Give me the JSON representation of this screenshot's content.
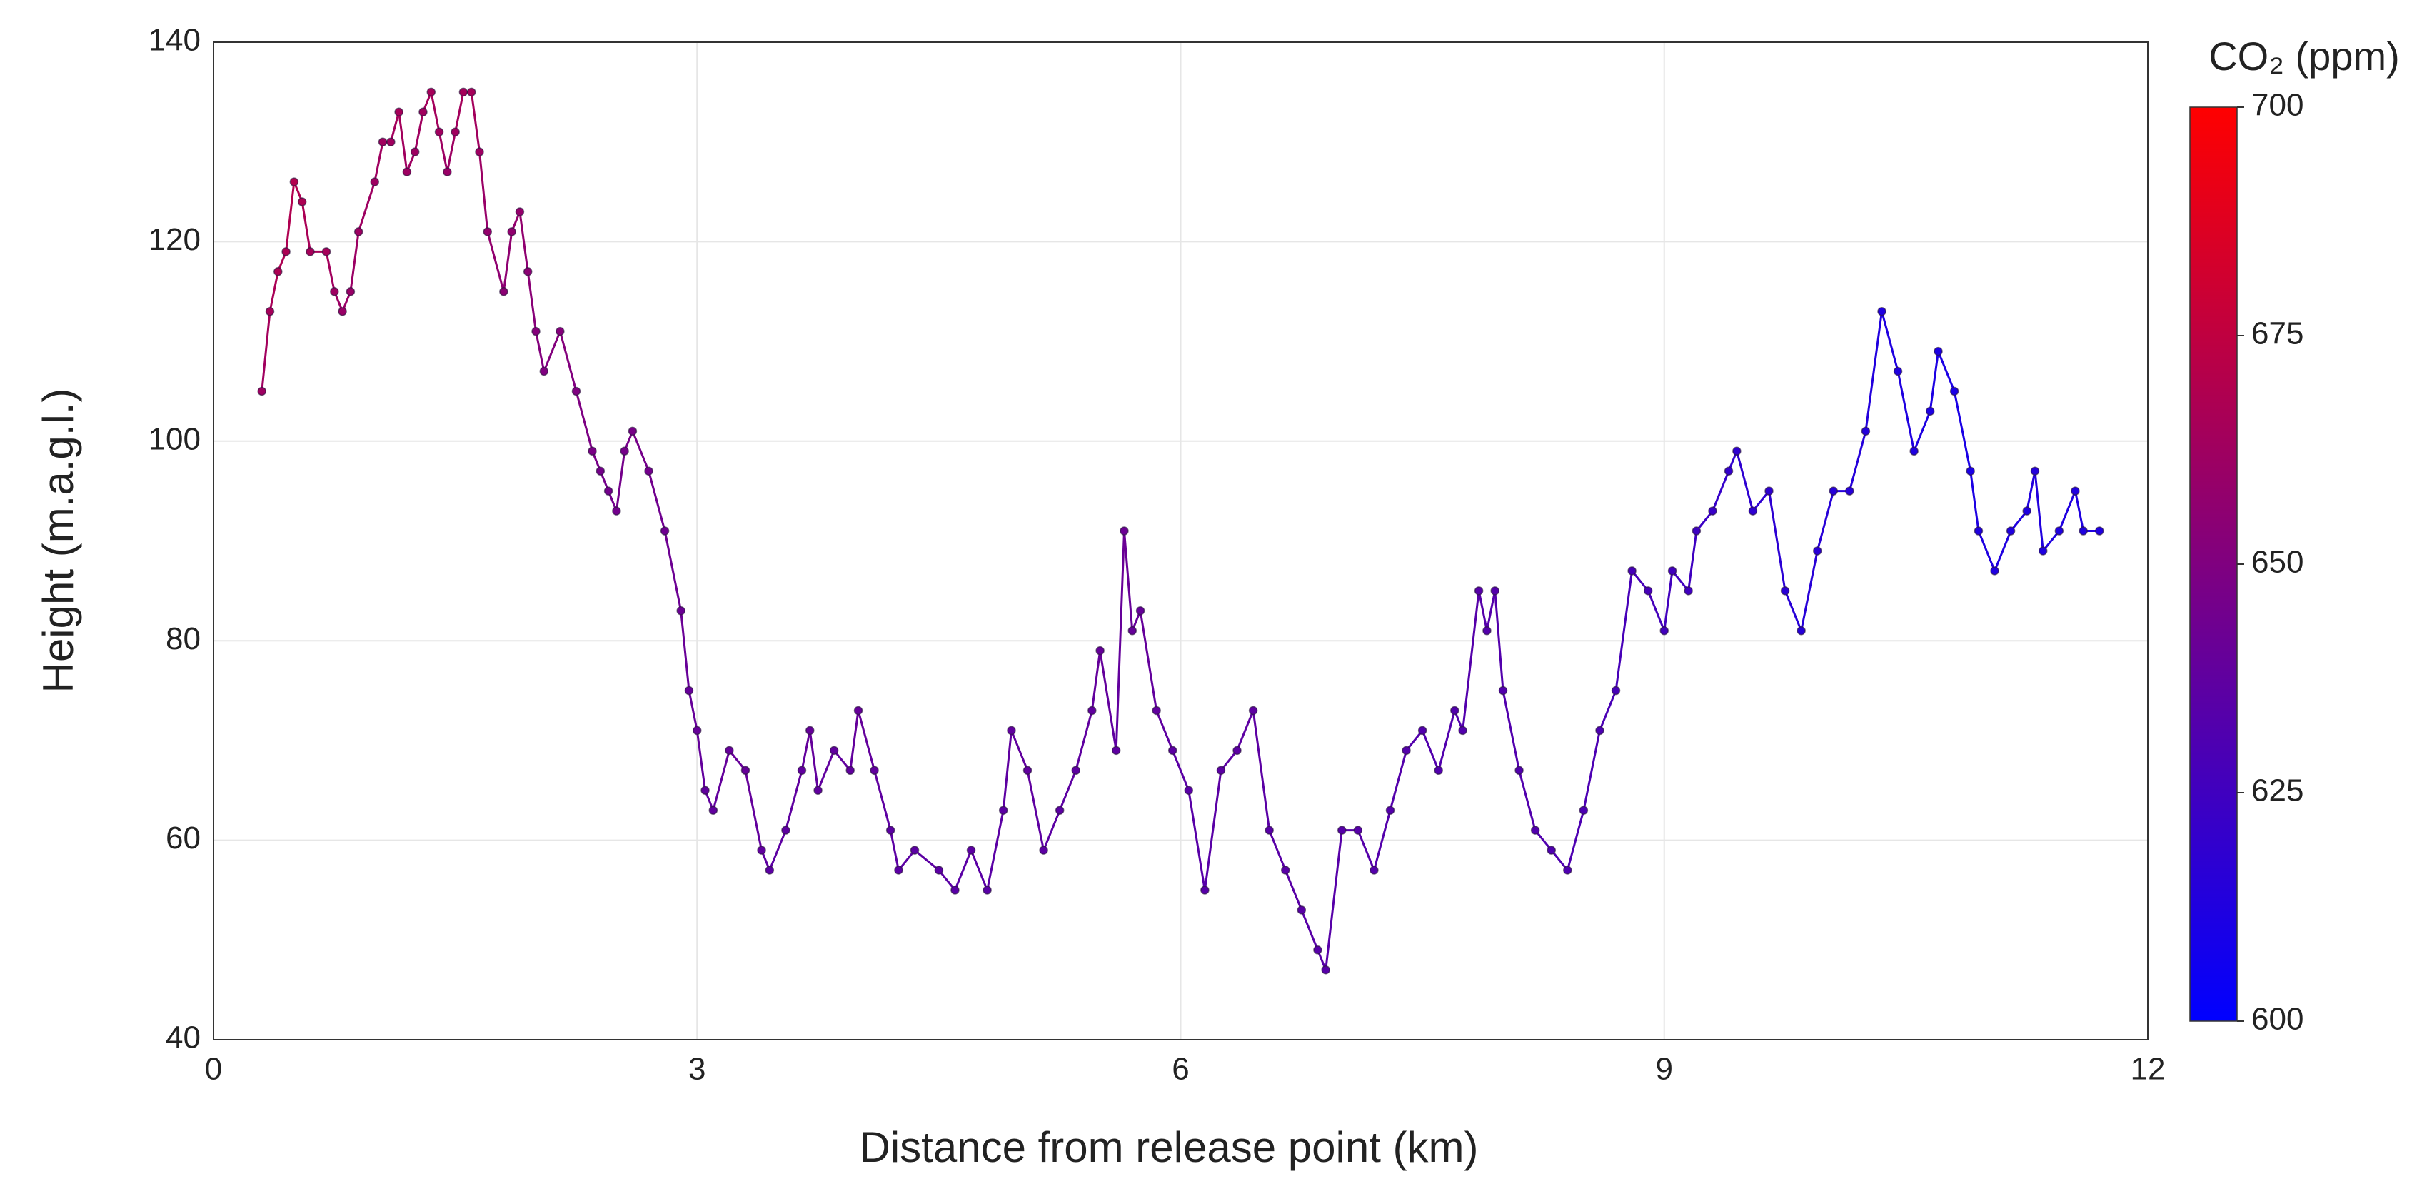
{
  "chart_data": {
    "type": "scatter",
    "x_label": "Distance from release point (km)",
    "y_label": "Height (m.a.g.l.)",
    "x": [
      0.3,
      0.35,
      0.4,
      0.45,
      0.5,
      0.55,
      0.6,
      0.7,
      0.75,
      0.8,
      0.85,
      0.9,
      1.0,
      1.05,
      1.1,
      1.15,
      1.2,
      1.25,
      1.3,
      1.35,
      1.4,
      1.45,
      1.5,
      1.55,
      1.6,
      1.65,
      1.7,
      1.8,
      1.85,
      1.9,
      1.95,
      2.0,
      2.05,
      2.15,
      2.25,
      2.35,
      2.4,
      2.45,
      2.5,
      2.55,
      2.6,
      2.7,
      2.8,
      2.9,
      2.95,
      3.0,
      3.05,
      3.1,
      3.2,
      3.3,
      3.4,
      3.45,
      3.55,
      3.65,
      3.7,
      3.75,
      3.85,
      3.95,
      4.0,
      4.1,
      4.2,
      4.25,
      4.35,
      4.5,
      4.6,
      4.7,
      4.8,
      4.9,
      4.95,
      5.05,
      5.15,
      5.25,
      5.35,
      5.45,
      5.5,
      5.6,
      5.65,
      5.7,
      5.75,
      5.85,
      5.95,
      6.05,
      6.15,
      6.25,
      6.35,
      6.45,
      6.55,
      6.65,
      6.75,
      6.85,
      6.9,
      7.0,
      7.1,
      7.2,
      7.3,
      7.4,
      7.5,
      7.6,
      7.7,
      7.75,
      7.85,
      7.9,
      7.95,
      8.0,
      8.1,
      8.2,
      8.3,
      8.4,
      8.5,
      8.6,
      8.7,
      8.8,
      8.9,
      9.0,
      9.05,
      9.15,
      9.2,
      9.3,
      9.4,
      9.45,
      9.55,
      9.65,
      9.75,
      9.85,
      9.95,
      10.05,
      10.15,
      10.25,
      10.35,
      10.45,
      10.55,
      10.65,
      10.7,
      10.8,
      10.9,
      10.95,
      11.05,
      11.15,
      11.25,
      11.3,
      11.35,
      11.45,
      11.55,
      11.6,
      11.7
    ],
    "values": [
      105,
      113,
      117,
      119,
      126,
      124,
      119,
      119,
      115,
      113,
      115,
      121,
      126,
      130,
      130,
      133,
      127,
      129,
      133,
      135,
      131,
      127,
      131,
      135,
      135,
      129,
      121,
      115,
      121,
      123,
      117,
      111,
      107,
      111,
      105,
      99,
      97,
      95,
      93,
      99,
      101,
      97,
      91,
      83,
      75,
      71,
      65,
      63,
      69,
      67,
      59,
      57,
      61,
      67,
      71,
      65,
      69,
      67,
      73,
      67,
      61,
      57,
      59,
      57,
      55,
      59,
      55,
      63,
      71,
      67,
      59,
      63,
      67,
      73,
      79,
      69,
      91,
      81,
      83,
      73,
      69,
      65,
      55,
      67,
      69,
      73,
      61,
      57,
      53,
      49,
      47,
      61,
      61,
      57,
      63,
      69,
      71,
      67,
      73,
      71,
      85,
      81,
      85,
      75,
      67,
      61,
      59,
      57,
      63,
      71,
      75,
      87,
      85,
      81,
      87,
      85,
      91,
      93,
      97,
      99,
      93,
      95,
      85,
      81,
      89,
      95,
      95,
      101,
      113,
      107,
      99,
      103,
      109,
      105,
      97,
      91,
      87,
      91,
      93,
      97,
      89,
      91,
      95,
      91,
      91
    ],
    "co2": [
      662,
      665,
      668,
      668,
      670,
      668,
      665,
      665,
      662,
      660,
      660,
      662,
      662,
      663,
      663,
      665,
      662,
      662,
      663,
      665,
      663,
      660,
      663,
      665,
      665,
      662,
      658,
      655,
      657,
      658,
      655,
      652,
      650,
      652,
      650,
      648,
      646,
      645,
      645,
      646,
      647,
      645,
      643,
      642,
      640,
      640,
      638,
      638,
      640,
      640,
      638,
      636,
      637,
      638,
      640,
      638,
      638,
      638,
      640,
      638,
      636,
      636,
      636,
      636,
      635,
      636,
      635,
      636,
      638,
      638,
      636,
      636,
      637,
      638,
      640,
      637,
      642,
      640,
      640,
      638,
      636,
      635,
      634,
      636,
      636,
      637,
      635,
      635,
      635,
      634,
      634,
      634,
      634,
      633,
      633,
      633,
      632,
      632,
      632,
      632,
      634,
      633,
      633,
      632,
      632,
      632,
      631,
      631,
      630,
      630,
      628,
      628,
      628,
      626,
      626,
      625,
      624,
      622,
      620,
      618,
      618,
      618,
      616,
      615,
      616,
      615,
      615,
      614,
      612,
      612,
      612,
      611,
      611,
      610,
      610,
      612,
      612,
      612,
      612,
      614,
      612,
      612,
      612,
      612,
      612
    ],
    "colorbar": {
      "title": "CO₂ (ppm)",
      "lim": [
        600,
        700
      ],
      "ticks": [
        600,
        625,
        650,
        675,
        700
      ],
      "colors": [
        "#0000ff",
        "#ff0000"
      ]
    },
    "xlim": [
      0,
      12
    ],
    "xticks": [
      0,
      3,
      6,
      9,
      12
    ],
    "ylim": [
      40,
      140
    ],
    "yticks": [
      40,
      60,
      80,
      100,
      120,
      140
    ],
    "grid": true
  }
}
